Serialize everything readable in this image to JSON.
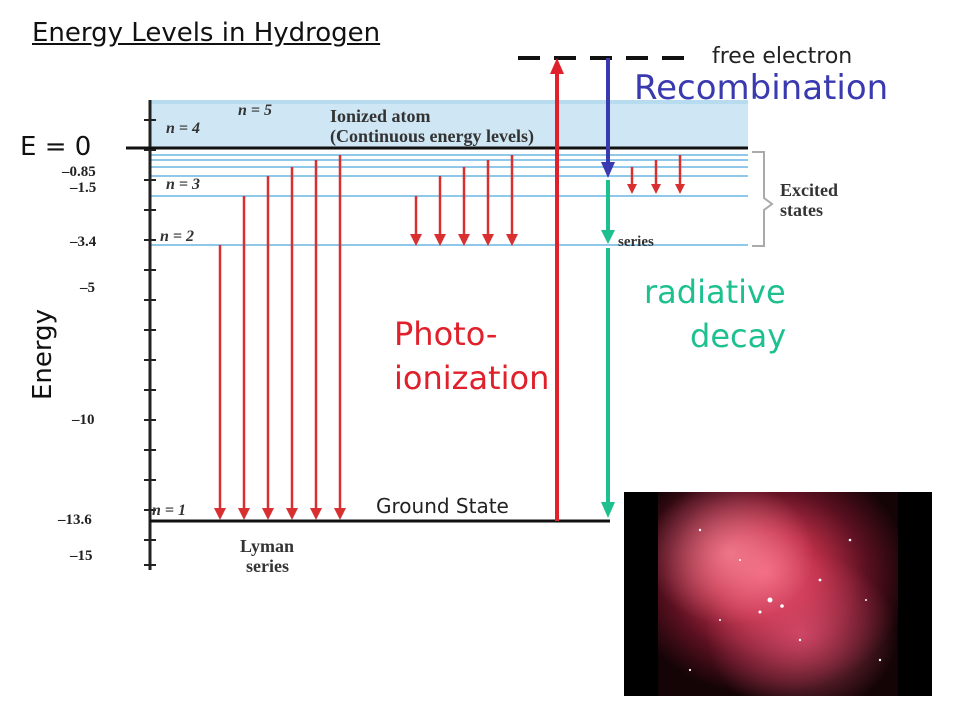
{
  "title": "Energy Levels in Hydrogen",
  "free_electron": "free electron",
  "recombination": "Recombination",
  "e_zero": "E = 0",
  "energy_axis": "Energy",
  "photo_ionization": [
    "Photo-",
    "ionization"
  ],
  "radiative_decay": [
    "radiative",
    "decay"
  ],
  "ground_state": "Ground State",
  "scan": {
    "ticks": [
      "–0.85",
      "–1.5",
      "–3.4",
      "–5",
      "–10",
      "–13.6",
      "–15"
    ],
    "n_labels": [
      "n = 5",
      "n = 4",
      "n = 3",
      "n = 2",
      "n = 1"
    ],
    "ionized_atom": [
      "Ionized atom",
      "(Continuous energy levels)"
    ],
    "excited_states": [
      "Excited",
      "states"
    ],
    "lyman": [
      "Lyman",
      "series"
    ],
    "series_fragment": "series"
  },
  "colors": {
    "photo": "#e0202a",
    "recombination": "#3a3ab0",
    "radiative": "#1fc090",
    "level_line": "#8fc8e8",
    "arrow_red": "#d83030"
  }
}
